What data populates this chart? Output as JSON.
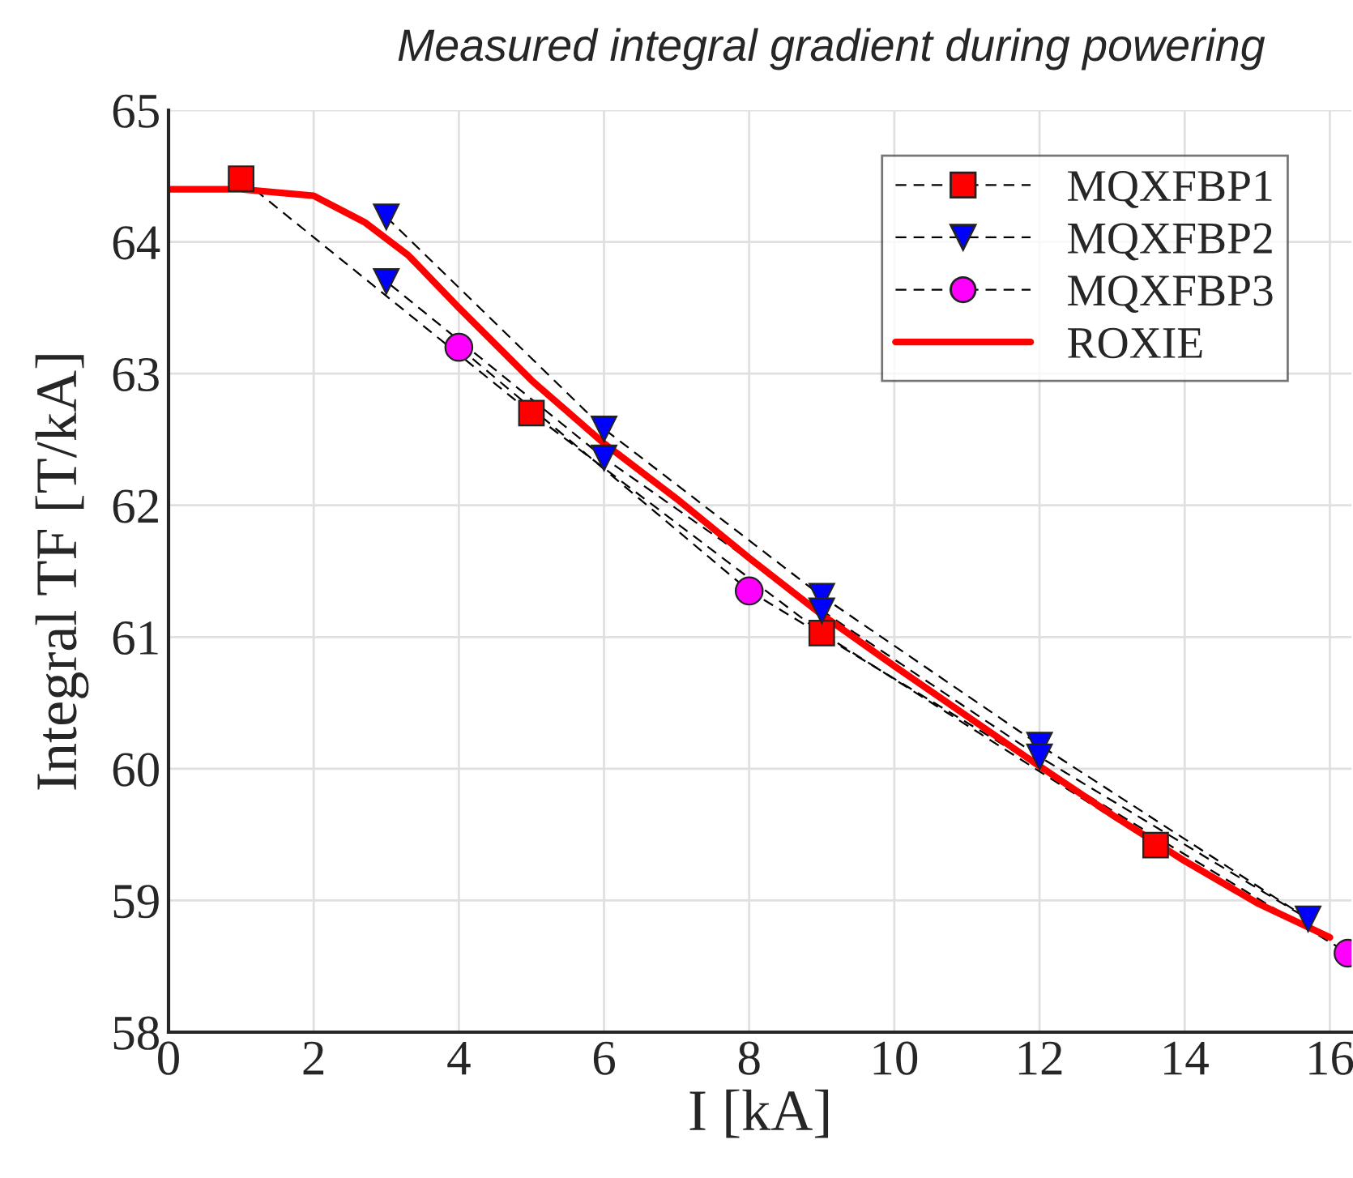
{
  "chart_data": {
    "type": "line",
    "title": "Measured integral gradient during powering",
    "xlabel": "I [kA]",
    "ylabel": "Integral TF [T/kA]",
    "xlim": [
      0,
      16.3
    ],
    "xticks": [
      0,
      2,
      4,
      6,
      8,
      10,
      12,
      14,
      16
    ],
    "ylim": [
      58,
      65
    ],
    "yticks": [
      58,
      59,
      60,
      61,
      62,
      63,
      64,
      65
    ],
    "grid": true,
    "legend": "top right",
    "series": [
      {
        "name": "MQXFBP1",
        "color": "#ff0000",
        "marker": "square",
        "line_style": "dashed",
        "x": [
          1,
          5,
          9,
          13.6
        ],
        "values": [
          64.48,
          62.7,
          61.03,
          59.42
        ]
      },
      {
        "name": "MQXFBP2",
        "color": "#0000ff",
        "marker": "triangle",
        "line_style": "dashed",
        "x": [
          3,
          6,
          9,
          12,
          15.7,
          12,
          9,
          6,
          3
        ],
        "values": [
          64.19,
          62.58,
          61.31,
          60.18,
          58.86,
          60.09,
          61.2,
          62.36,
          63.7
        ]
      },
      {
        "name": "MQXFBP3",
        "color": "#ff00ff",
        "marker": "circle",
        "line_style": "dashed",
        "x": [
          4,
          8,
          16.25
        ],
        "values": [
          63.2,
          61.35,
          58.6
        ]
      },
      {
        "name": "ROXIE",
        "color": "#ff0000",
        "marker": "none",
        "line_style": "solid",
        "x": [
          0,
          1,
          2,
          2.7,
          3.3,
          4,
          5,
          6,
          7,
          8,
          9,
          10,
          11,
          12,
          13,
          14,
          15,
          16
        ],
        "values": [
          64.4,
          64.4,
          64.35,
          64.15,
          63.9,
          63.5,
          62.95,
          62.47,
          62.05,
          61.6,
          61.17,
          60.78,
          60.4,
          60.02,
          59.65,
          59.3,
          58.98,
          58.72
        ]
      }
    ]
  }
}
